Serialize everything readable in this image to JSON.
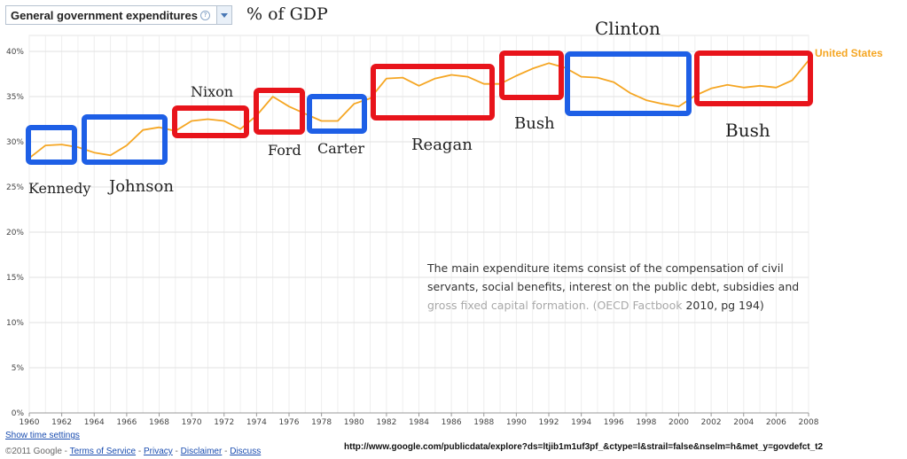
{
  "metric_selector": {
    "label": "General government expenditures",
    "help_glyph": "?"
  },
  "unit_label": "% of GDP",
  "chart_data": {
    "type": "line",
    "x_ticks": [
      "1960",
      "1962",
      "1964",
      "1966",
      "1968",
      "1970",
      "1972",
      "1974",
      "1976",
      "1978",
      "1980",
      "1982",
      "1984",
      "1986",
      "1988",
      "1990",
      "1992",
      "1994",
      "1996",
      "1998",
      "2000",
      "2002",
      "2004",
      "2006",
      "2008"
    ],
    "y_ticks": [
      "0%",
      "5%",
      "10%",
      "15%",
      "20%",
      "25%",
      "30%",
      "35%",
      "40%"
    ],
    "xlim": [
      1960,
      2008
    ],
    "ylim": [
      0,
      42
    ],
    "grid": true,
    "series": [
      {
        "name": "United States",
        "color": "#f5a623",
        "x": [
          1960,
          1961,
          1962,
          1963,
          1964,
          1965,
          1966,
          1967,
          1968,
          1969,
          1970,
          1971,
          1972,
          1973,
          1974,
          1975,
          1976,
          1977,
          1978,
          1979,
          1980,
          1981,
          1982,
          1983,
          1984,
          1985,
          1986,
          1987,
          1988,
          1989,
          1990,
          1991,
          1992,
          1993,
          1994,
          1995,
          1996,
          1997,
          1998,
          1999,
          2000,
          2001,
          2002,
          2003,
          2004,
          2005,
          2006,
          2007,
          2008
        ],
        "y": [
          28.2,
          29.6,
          29.7,
          29.4,
          28.8,
          28.5,
          29.6,
          31.3,
          31.6,
          31.2,
          32.3,
          32.5,
          32.3,
          31.4,
          32.9,
          35.0,
          33.9,
          33.1,
          32.3,
          32.3,
          34.2,
          34.8,
          37.0,
          37.1,
          36.2,
          37.0,
          37.4,
          37.2,
          36.4,
          36.4,
          37.3,
          38.1,
          38.7,
          38.2,
          37.2,
          37.1,
          36.6,
          35.4,
          34.6,
          34.2,
          33.9,
          35.1,
          35.9,
          36.3,
          36.0,
          36.2,
          36.0,
          36.8,
          39.0
        ]
      }
    ],
    "annotations": [
      {
        "label": "Kennedy",
        "color": "#e8141b",
        "frame_color": "#1e5fe6"
      },
      {
        "label": "Johnson",
        "frame_color": "#1e5fe6"
      },
      {
        "label": "Nixon",
        "frame_color": "#e8141b"
      },
      {
        "label": "Ford",
        "frame_color": "#e8141b"
      },
      {
        "label": "Carter",
        "frame_color": "#1e5fe6"
      },
      {
        "label": "Reagan",
        "frame_color": "#e8141b"
      },
      {
        "label": "Bush",
        "frame_color": "#e8141b"
      },
      {
        "label": "Clinton",
        "frame_color": "#1e5fe6"
      },
      {
        "label": "Bush",
        "frame_color": "#e8141b"
      }
    ]
  },
  "note": {
    "text_main": "The main expenditure items consist of the compensation of civil servants, social benefits, interest on the public debt, subsidies and ",
    "text_faded": "gross fixed capital formation. (OECD Factbook ",
    "text_end": "2010, pg 194)"
  },
  "footer": {
    "show_time_settings": "Show time settings",
    "copyright": "©2011 Google - ",
    "links": [
      "Terms of Service",
      "Privacy",
      "Disclaimer",
      "Discuss"
    ],
    "separator": " - ",
    "source_url": "http://www.google.com/publicdata/explore?ds=ltjib1m1uf3pf_&ctype=l&strail=false&nselm=h&met_y=govdefct_t2"
  }
}
